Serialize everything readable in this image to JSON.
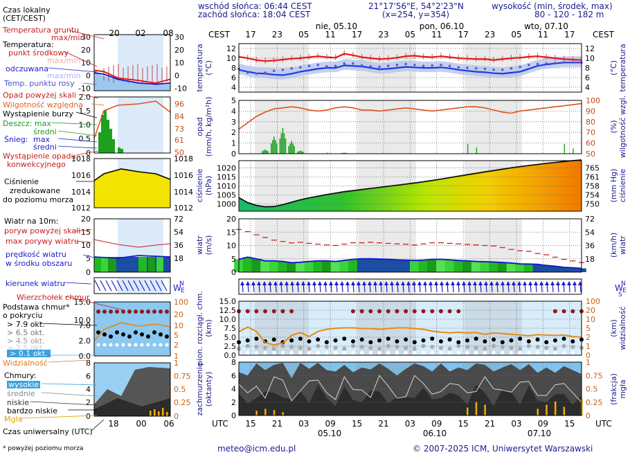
{
  "header": {
    "sunrise": "wschód słońca: 06:44 CEST",
    "sunset": "zachód słońca: 18:04 CEST",
    "coords": "21°17'56\"E, 54°2'23\"N",
    "grid": "(x=254,  y=354)",
    "height_title": "wysokość (min, środek, max)",
    "height_values": "80 - 120 - 182 m",
    "tz_left": "CEST",
    "tz_right": "CEST",
    "utc_left": "UTC",
    "utc_right": "UTC",
    "days_top": [
      "nie, 05.10",
      "pon, 06.10",
      "wto, 07.10"
    ],
    "hours_top": [
      "17",
      "23",
      "05",
      "11",
      "17",
      "23",
      "05",
      "11",
      "17",
      "23",
      "05",
      "11",
      "17"
    ],
    "hours_utc": [
      "15",
      "21",
      "03",
      "09",
      "15",
      "21",
      "03",
      "09",
      "15",
      "21",
      "03",
      "09",
      "15"
    ],
    "days_bottom": [
      "05.10",
      "06.10",
      "07.10"
    ]
  },
  "legend": {
    "local_time": "Czas lokalny",
    "local_time2": "(CET/CEST)",
    "mini_hours_top": [
      "20",
      "02",
      "08"
    ],
    "mini_hours_bottom": [
      "18",
      "00",
      "06"
    ],
    "soil_temp": "Temperatura gruntu",
    "soil_temp2": "max/min",
    "temp": "Temperatura:",
    "temp_mid": "punkt środkowy",
    "temp_maxmin": "max/min",
    "felt": "odczuwana",
    "felt_maxmin": "max/min",
    "dew": "Temp. punktu rosy",
    "over_scale": "Opad powyżej skali",
    "humidity": "Wilgotność względna",
    "storm": "Wystąpienie burzy",
    "rain": "Deszcz: max",
    "rain_mid": "średni",
    "snow": "Śnieg:",
    "snow_max": "max",
    "snow_mid": "średni",
    "conv": "Wystąpienie opadu",
    "conv2": "konwekcyjnego",
    "pressure1": "Ciśnienie",
    "pressure2": "zredukowane",
    "pressure3": "do poziomu morza",
    "wind10": "Wiatr na 10m:",
    "gust_over": "poryw powyżej skali",
    "gust_max": "max porywy wiatru",
    "wind_speed": "prędkość wiatru",
    "wind_area": "w środku obszaru",
    "wind_dir": "kierunek wiatru",
    "cloud_top": "Wierzchołek chmur",
    "cloud_base": "Podstawa chmur*",
    "coverage": "o pokryciu",
    "okt79": "> 7.9 okt.",
    "okt65": "> 6.5 okt.",
    "okt45": "> 4.5 okt.",
    "okt25": "> 2.5 okt.",
    "okt01": "> 0.1 okt.",
    "visibility": "Widzialność",
    "clouds": "Chmury:",
    "c_high": "wysokie",
    "c_mid": "średnie",
    "c_low": "niskie",
    "c_vlow": "bardzo niskie",
    "fog": "Mgła",
    "utc": "Czas uniwersalny (UTC)",
    "footnote": "* powyżej poziomu morza"
  },
  "axis_labels": {
    "temp": "temperatura",
    "temp_unit": "(°C)",
    "precip": "opad",
    "precip_unit": "(mm/h, kg/m²h)",
    "hum": "wilgotność wzgl.",
    "hum_unit": "(%)",
    "press": "ciśnienie",
    "press_unit": "(hPa)",
    "press_r": "ciśnienie",
    "press_r_unit": "(mm Hg)",
    "wind": "wiatr",
    "wind_unit": "(m/s)",
    "wind_r": "wiatr",
    "wind_r_unit": "(km/h)",
    "cloud1": "pion. rozciągł. chm.",
    "cloud2": "(km)",
    "vis": "widzialność",
    "vis_unit": "(km)",
    "cc1": "zachmurzenie",
    "cc2": "(oktanty)",
    "fog1": "mgła",
    "fog2": "(frakcja)"
  },
  "footer": {
    "email": "meteo@icm.edu.pl",
    "copyright": "© 2007-2025 ICM, Uniwersytet Warszawski"
  },
  "chart_data": [
    {
      "type": "line",
      "name": "temperature",
      "ylim": [
        3,
        13
      ],
      "yticks_left": [
        "4",
        "6",
        "8",
        "10",
        "12"
      ],
      "series": [
        {
          "name": "punkt środkowy",
          "values": [
            10.3,
            10.0,
            9.6,
            9.4,
            9.5,
            9.7,
            9.9,
            10.0,
            10.2,
            10.4,
            10.2,
            10.1,
            10.9,
            10.6,
            10.2,
            10.0,
            9.8,
            9.9,
            10.1,
            10.4,
            10.5,
            10.3,
            10.2,
            10.4,
            10.2,
            10.0,
            9.9,
            9.8,
            9.8,
            9.6,
            9.8,
            10.0,
            10.1,
            10.3,
            10.4,
            10.2,
            10.0,
            9.8,
            9.7,
            9.6
          ]
        },
        {
          "name": "odczuwana",
          "values": [
            7.6,
            7.2,
            6.9,
            6.8,
            6.6,
            6.5,
            6.8,
            7.2,
            7.5,
            7.8,
            8.0,
            8.0,
            8.5,
            8.4,
            8.3,
            8.0,
            7.7,
            7.8,
            8.0,
            8.2,
            8.1,
            8.0,
            8.0,
            8.1,
            7.9,
            7.6,
            7.4,
            7.2,
            7.1,
            6.9,
            6.8,
            7.0,
            7.2,
            7.8,
            8.4,
            8.7,
            8.9,
            9.1,
            9.1,
            9.1
          ]
        },
        {
          "name": "Temp. punktu rosy",
          "values": [
            7.8,
            7.0,
            6.8,
            7.0,
            7.4,
            7.6,
            7.9,
            8.1,
            8.4,
            8.6,
            8.3,
            8.4,
            8.9,
            8.9,
            8.5,
            8.3,
            8.2,
            8.4,
            8.6,
            8.8,
            8.6,
            8.4,
            8.5,
            8.6,
            8.4,
            8.1,
            8.0,
            7.9,
            7.8,
            7.6,
            7.6,
            7.9,
            8.2,
            8.6,
            8.8,
            8.9,
            9.0,
            9.1,
            9.1,
            9.1
          ]
        }
      ]
    },
    {
      "type": "bar",
      "name": "precipitation",
      "ylim": [
        0,
        5
      ],
      "yticks_left": [
        "0",
        "1",
        "2",
        "3",
        "4",
        "5"
      ],
      "yticks_right": [
        "50",
        "61",
        "73",
        "84",
        "96"
      ],
      "series": [
        {
          "name": "Deszcz średni",
          "values": [
            0,
            0,
            0,
            0.4,
            1.6,
            2.4,
            1.2,
            0.3,
            0,
            0,
            0,
            0,
            0.1,
            0,
            0,
            0,
            0,
            0,
            0,
            0,
            0,
            0,
            0,
            0,
            0,
            0,
            0,
            0,
            0,
            0,
            0,
            0,
            0,
            0,
            0,
            0,
            0,
            0,
            0,
            0
          ]
        },
        {
          "name": "Wilgotność względna",
          "values": [
            73,
            79,
            85,
            89,
            92,
            93,
            94,
            93,
            91,
            90,
            91,
            93,
            94,
            93,
            91,
            91,
            90,
            91,
            92,
            93,
            92,
            91,
            90,
            91,
            92,
            93,
            94,
            94,
            93,
            91,
            89,
            88,
            90,
            91,
            92,
            93,
            94,
            95,
            96,
            97
          ]
        }
      ]
    },
    {
      "type": "area",
      "name": "pressure",
      "ylim": [
        996,
        1024
      ],
      "yticks_left": [
        "1000",
        "1005",
        "1010",
        "1015",
        "1020"
      ],
      "yticks_right": [
        "750",
        "754",
        "758",
        "761",
        "765"
      ],
      "values": [
        1003.5,
        1000.8,
        999.2,
        998.4,
        998.6,
        999.6,
        1001.0,
        1002.3,
        1003.4,
        1004.3,
        1005.2,
        1006.0,
        1006.8,
        1007.4,
        1008.0,
        1008.6,
        1009.2,
        1009.8,
        1010.4,
        1011.0,
        1011.6,
        1012.3,
        1013.0,
        1013.8,
        1014.6,
        1015.4,
        1016.2,
        1017.0,
        1017.8,
        1018.5,
        1019.3,
        1020.0,
        1020.7,
        1021.3,
        1021.9,
        1022.5,
        1023.0,
        1023.5,
        1024.0,
        1024.4
      ]
    },
    {
      "type": "line",
      "name": "wind",
      "ylim": [
        0,
        20
      ],
      "yticks_left": [
        "0",
        "5",
        "10",
        "15",
        "20"
      ],
      "yticks_right": [
        "18",
        "36",
        "54",
        "72"
      ],
      "series": [
        {
          "name": "prędkość wiatru",
          "values": [
            4.8,
            5.6,
            5.0,
            4.2,
            4.2,
            4.0,
            3.5,
            3.7,
            4.0,
            4.2,
            4.2,
            4.0,
            4.4,
            4.8,
            5.0,
            5.0,
            4.9,
            4.8,
            4.6,
            4.5,
            4.4,
            4.5,
            4.8,
            4.8,
            4.6,
            4.4,
            4.2,
            4.0,
            3.9,
            3.8,
            3.6,
            3.4,
            3.1,
            3.0,
            2.9,
            2.5,
            2.2,
            1.8,
            1.6,
            1.4
          ]
        },
        {
          "name": "max porywy wiatru",
          "values": [
            16.0,
            15.2,
            14.0,
            13.0,
            12.0,
            11.5,
            11.0,
            11.2,
            10.8,
            10.5,
            10.2,
            10.0,
            10.5,
            11.0,
            11.0,
            11.2,
            11.0,
            10.8,
            10.6,
            10.5,
            10.2,
            10.6,
            11.0,
            11.0,
            10.8,
            10.6,
            10.4,
            10.2,
            10.0,
            9.8,
            9.2,
            8.5,
            8.0,
            7.8,
            7.0,
            6.5,
            5.6,
            4.8,
            4.2,
            3.6
          ]
        }
      ]
    },
    {
      "type": "line",
      "name": "cloud_visibility",
      "ylim": [
        0,
        15
      ],
      "yticks_left": [
        "0.0",
        "2.5",
        "5.0",
        "7.5",
        "10.0",
        "12.5",
        "15.0"
      ],
      "yticks_right": [
        "0",
        "1",
        "2",
        "5",
        "10",
        "20",
        "100"
      ],
      "series": [
        {
          "name": "Widzialność",
          "values": [
            6.5,
            7.8,
            6.6,
            3.5,
            2.8,
            3.4,
            5.5,
            6.3,
            5.2,
            6.6,
            7.2,
            7.5,
            7.6,
            7.6,
            7.4,
            7.4,
            7.2,
            7.4,
            7.6,
            7.6,
            7.4,
            7.2,
            6.7,
            6.4,
            6.2,
            6.4,
            6.2,
            6.3,
            5.8,
            6.2,
            6.0,
            5.8,
            5.6,
            5.4,
            5.7,
            5.6,
            5.5,
            5.6,
            5.2,
            5.0
          ]
        }
      ]
    },
    {
      "type": "area",
      "name": "cloud_cover",
      "ylim": [
        0,
        8
      ],
      "yticks_left": [
        "0",
        "2",
        "4",
        "6",
        "8"
      ],
      "yticks_right": [
        "0",
        "0.25",
        "0.5",
        "0.75",
        "1"
      ],
      "values": [
        6.5,
        6.0,
        7.8,
        6.8,
        7.6,
        7.9,
        5.6,
        7.9,
        7.0,
        7.9,
        6.8,
        6.6,
        7.6,
        6.5,
        7.2,
        6.9,
        7.8,
        7.0,
        6.0,
        7.0,
        7.8,
        7.4,
        6.6,
        7.8,
        6.6,
        7.2,
        6.8,
        7.8,
        7.6,
        6.6,
        7.2,
        7.7,
        6.8,
        7.7,
        6.4,
        7.2,
        6.4,
        7.4,
        6.8,
        6.2
      ]
    }
  ]
}
